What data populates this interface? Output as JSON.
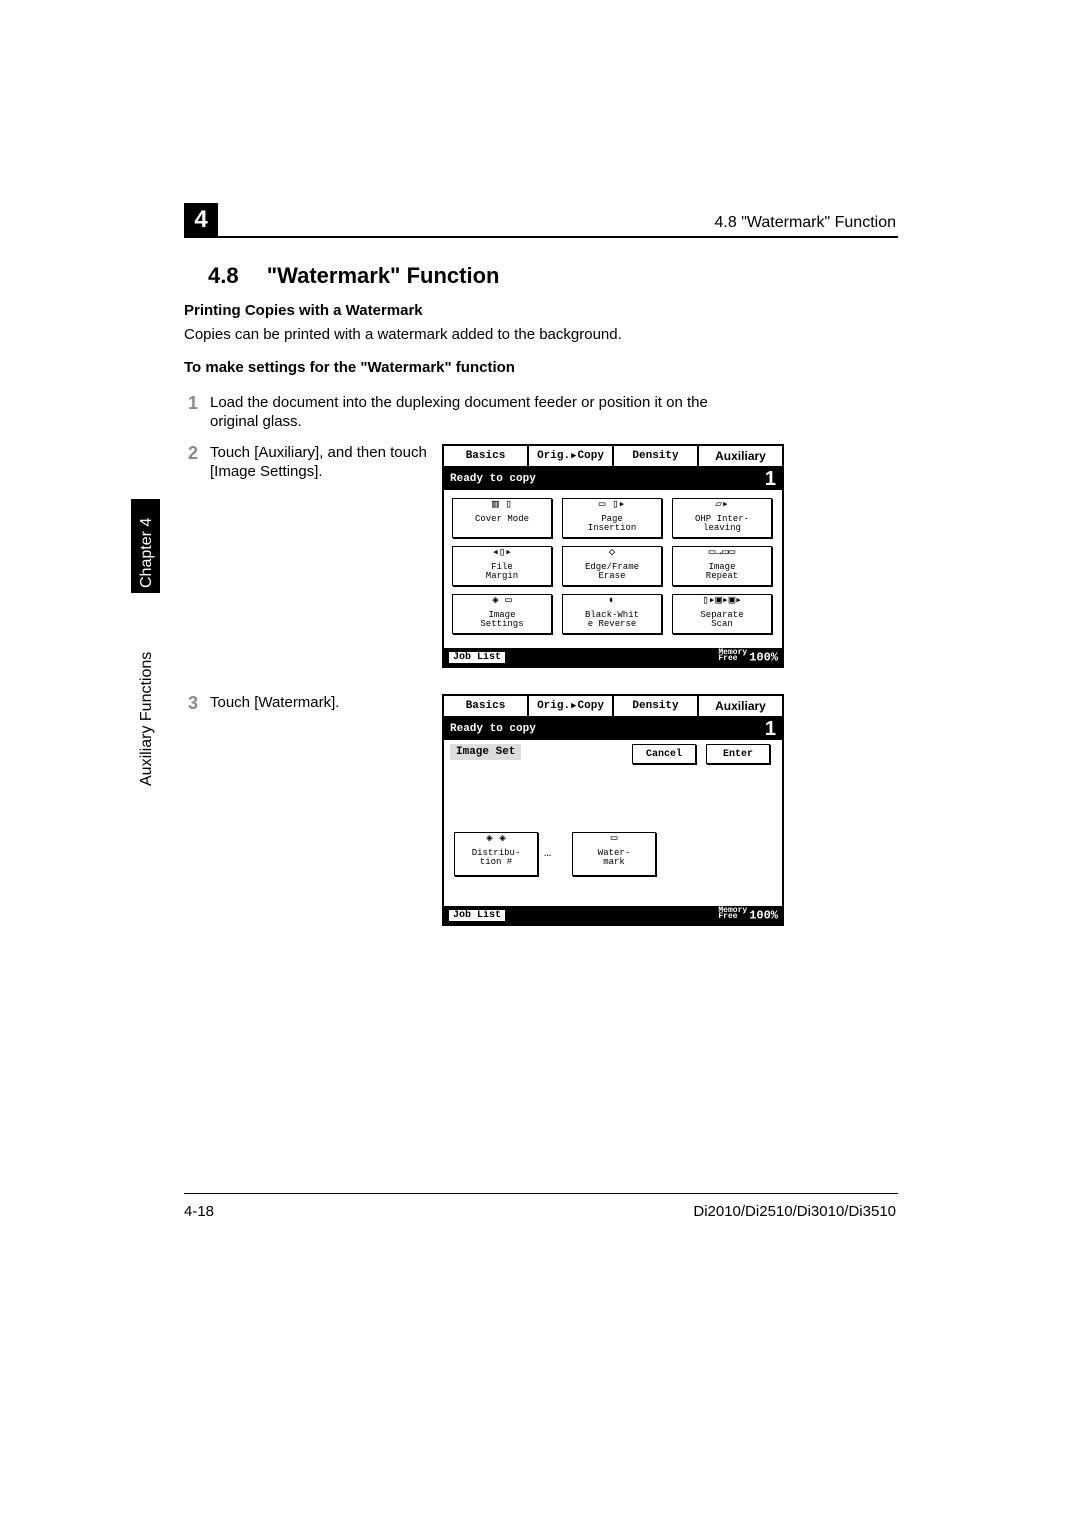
{
  "header": {
    "chapter_number": "4",
    "running_head": "4.8 \"Watermark\" Function"
  },
  "section": {
    "number": "4.8",
    "title": "\"Watermark\" Function"
  },
  "subsections": {
    "printing": "Printing Copies with a Watermark",
    "printing_body": "Copies can be printed with a watermark added to the background.",
    "procedure": "To make settings for the \"Watermark\" function"
  },
  "steps": {
    "s1": {
      "n": "1",
      "text": "Load the document into the duplexing document feeder or position it on the original glass."
    },
    "s2": {
      "n": "2",
      "text": "Touch [Auxiliary], and then touch [Image Settings]."
    },
    "s3": {
      "n": "3",
      "text": "Touch [Watermark]."
    }
  },
  "sidetab": {
    "chapter": "Chapter 4",
    "name": "Auxiliary Functions"
  },
  "lcd_common": {
    "tabs": {
      "basics": "Basics",
      "origcopy_a": "Orig.",
      "origcopy_b": "Copy",
      "density": "Density",
      "auxiliary": "Auxiliary"
    },
    "status": "Ready to copy",
    "count": "1",
    "joblist": "Job List",
    "memory_label_a": "Memory",
    "memory_label_b": "Free",
    "memory_pct": "100%"
  },
  "lcd1": {
    "btns": {
      "cover": {
        "label": "Cover Mode"
      },
      "page": {
        "label": "Page\nInsertion"
      },
      "ohp": {
        "label": "OHP Inter-\nleaving"
      },
      "file": {
        "label": "File\nMargin"
      },
      "edge": {
        "label": "Edge/Frame\nErase"
      },
      "repeat": {
        "label": "Image\nRepeat"
      },
      "imgset": {
        "label": "Image\nSettings"
      },
      "bwrev": {
        "label": "Black-Whit\ne Reverse"
      },
      "sepscan": {
        "label": "Separate\nScan"
      }
    }
  },
  "lcd2": {
    "heading": "Image Set",
    "cancel": "Cancel",
    "enter": "Enter",
    "btns": {
      "dist": {
        "label": "Distribu-\ntion #"
      },
      "water": {
        "label": "Water-\nmark"
      }
    },
    "dots": "…"
  },
  "footer": {
    "page": "4-18",
    "models": "Di2010/Di2510/Di3010/Di3510"
  }
}
